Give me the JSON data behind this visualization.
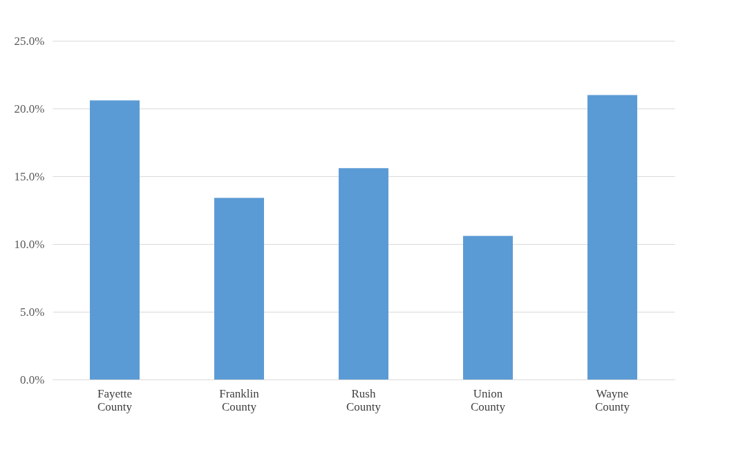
{
  "chart_data": {
    "type": "bar",
    "categories": [
      "Fayette County",
      "Franklin County",
      "Rush County",
      "Union County",
      "Wayne County"
    ],
    "values": [
      20.6,
      13.4,
      15.6,
      10.6,
      21.0
    ],
    "color": "#5b9bd5",
    "ylim": [
      0,
      25
    ],
    "yticks": [
      {
        "value": 0,
        "label": "0.0%"
      },
      {
        "value": 5,
        "label": "5.0%"
      },
      {
        "value": 10,
        "label": "10.0%"
      },
      {
        "value": 15,
        "label": "15.0%"
      },
      {
        "value": 20,
        "label": "20.0%"
      },
      {
        "value": 25,
        "label": "25.0%"
      }
    ],
    "grid": "y"
  }
}
